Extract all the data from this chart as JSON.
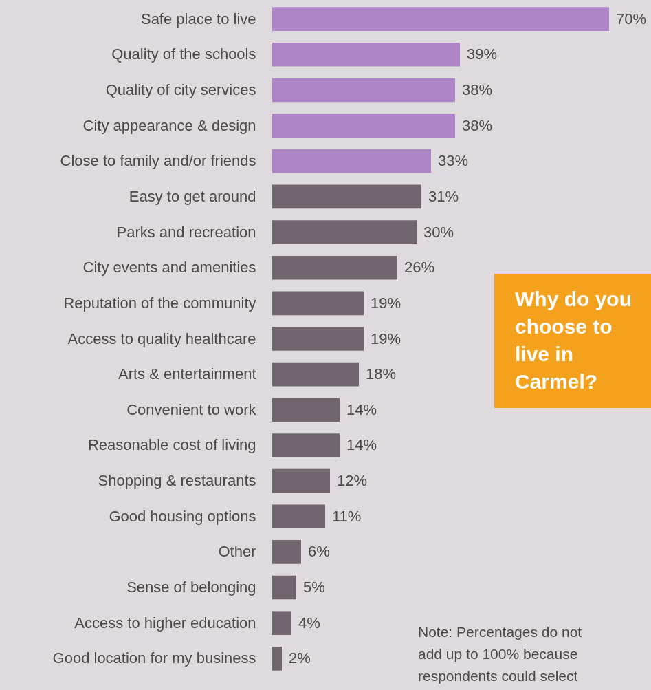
{
  "chart_data": {
    "type": "bar",
    "orientation": "horizontal",
    "title": "Why do you choose to live in Carmel?",
    "categories": [
      "Safe place to live",
      "Quality of the schools",
      "Quality of city services",
      "City appearance & design",
      "Close to family and/or friends",
      "Easy to get around",
      "Parks and recreation",
      "City events and amenities",
      "Reputation of the community",
      "Access to quality healthcare",
      "Arts & entertainment",
      "Convenient to work",
      "Reasonable cost of living",
      "Shopping & restaurants",
      "Good housing options",
      "Other",
      "Sense of belonging",
      "Access to higher education",
      "Good location for my business"
    ],
    "values": [
      70,
      39,
      38,
      38,
      33,
      31,
      30,
      26,
      19,
      19,
      18,
      14,
      14,
      12,
      11,
      6,
      5,
      4,
      2
    ],
    "value_labels": [
      "70%",
      "39%",
      "38%",
      "38%",
      "33%",
      "31%",
      "30%",
      "26%",
      "19%",
      "19%",
      "18%",
      "14%",
      "14%",
      "12%",
      "11%",
      "6%",
      "5%",
      "4%",
      "2%"
    ],
    "colors": [
      "#ae86c8",
      "#ae86c8",
      "#ae86c8",
      "#ae86c8",
      "#ae86c8",
      "#716670",
      "#716670",
      "#716670",
      "#716670",
      "#716670",
      "#716670",
      "#716670",
      "#716670",
      "#716670",
      "#716670",
      "#716670",
      "#716670",
      "#716670",
      "#716670"
    ],
    "annotations": [
      "Note: Percentages do not add up to 100% because respondents could select"
    ]
  }
}
